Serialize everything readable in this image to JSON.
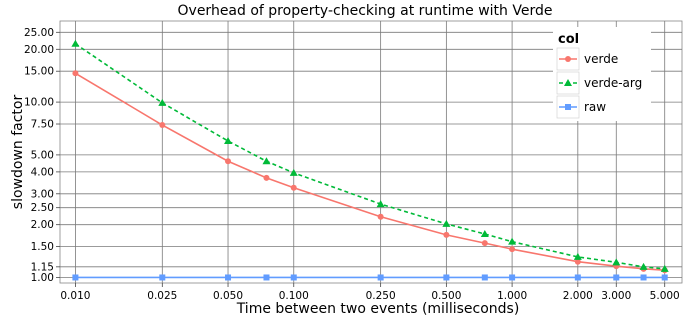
{
  "chart_data": {
    "type": "line",
    "title": "Overhead of property-checking at runtime with Verde",
    "xlabel": "Time between two events (milliseconds)",
    "ylabel": "slowdown factor",
    "x_scale": "log",
    "y_scale": "log",
    "xlim": [
      0.0085,
      6.0
    ],
    "ylim": [
      0.93,
      29.0
    ],
    "x_ticks": [
      0.01,
      0.025,
      0.05,
      0.1,
      0.25,
      0.5,
      1.0,
      2.0,
      3.0,
      5.0
    ],
    "x_tick_labels": [
      "0.010",
      "0.025",
      "0.050",
      "0.100",
      "0.250",
      "0.500",
      "1.000",
      "2.000",
      "3.000",
      "5.000"
    ],
    "y_ticks": [
      1.0,
      1.15,
      1.5,
      2.0,
      2.5,
      3.0,
      4.0,
      5.0,
      7.5,
      10.0,
      15.0,
      20.0,
      25.0
    ],
    "y_tick_labels": [
      "1.00",
      "1.15",
      "1.50",
      "2.00",
      "2.50",
      "3.00",
      "4.00",
      "5.00",
      "7.50",
      "10.00",
      "15.00",
      "20.00",
      "25.00"
    ],
    "grid": true,
    "legend": {
      "title": "col",
      "position": "right"
    },
    "series": [
      {
        "name": "verde",
        "color": "#f8766d",
        "marker": "circle",
        "dash": "solid",
        "x": [
          0.01,
          0.025,
          0.05,
          0.075,
          0.1,
          0.25,
          0.5,
          0.75,
          1.0,
          2.0,
          3.0,
          4.0,
          5.0
        ],
        "y": [
          14.6,
          7.4,
          4.6,
          3.7,
          3.25,
          2.22,
          1.75,
          1.57,
          1.45,
          1.23,
          1.16,
          1.12,
          1.1
        ]
      },
      {
        "name": "verde-arg",
        "color": "#00ba38",
        "marker": "triangle",
        "dash": "dashed",
        "x": [
          0.01,
          0.025,
          0.05,
          0.075,
          0.1,
          0.25,
          0.5,
          0.75,
          1.0,
          2.0,
          3.0,
          4.0,
          5.0
        ],
        "y": [
          21.5,
          9.9,
          6.0,
          4.6,
          3.95,
          2.62,
          2.02,
          1.77,
          1.6,
          1.31,
          1.22,
          1.15,
          1.12
        ]
      },
      {
        "name": "raw",
        "color": "#619cff",
        "marker": "square",
        "dash": "solid",
        "x": [
          0.01,
          0.025,
          0.05,
          0.075,
          0.1,
          0.25,
          0.5,
          0.75,
          1.0,
          2.0,
          3.0,
          4.0,
          5.0
        ],
        "y": [
          1.0,
          1.0,
          1.0,
          1.0,
          1.0,
          1.0,
          1.0,
          1.0,
          1.0,
          1.0,
          1.0,
          1.0,
          1.0
        ]
      }
    ]
  }
}
